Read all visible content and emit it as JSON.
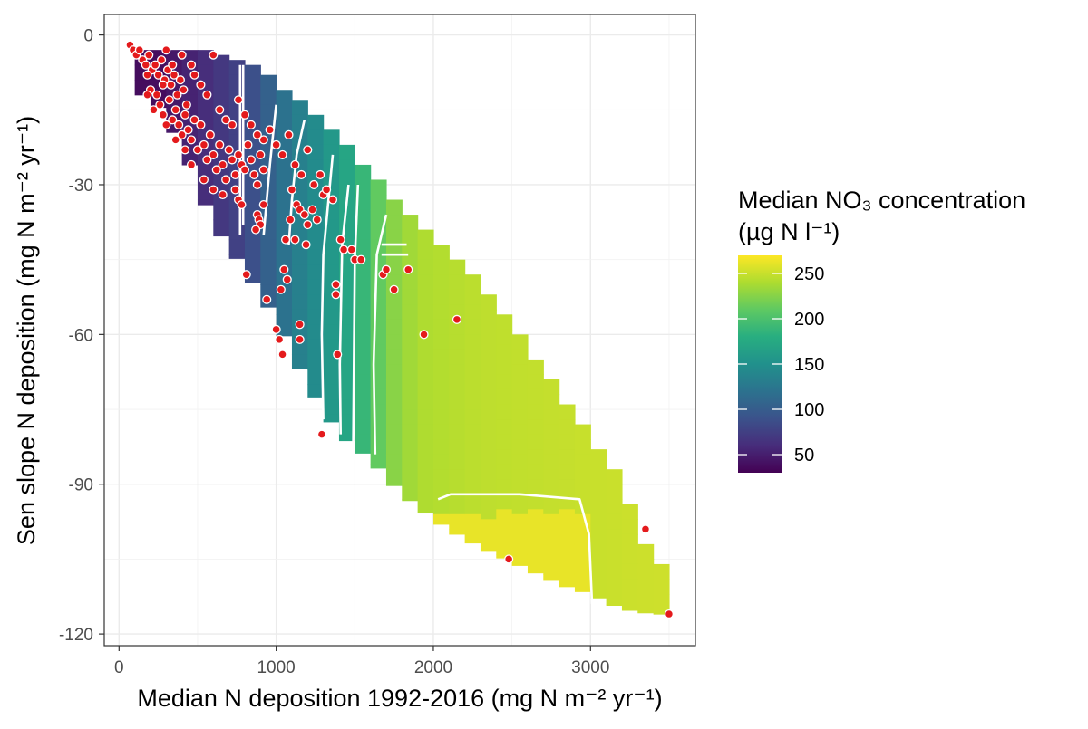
{
  "chart_data": {
    "type": "heatmap",
    "title": "",
    "xlabel": "Median N deposition 1992-2016 (mg N m⁻² yr⁻¹)",
    "ylabel": "Sen slope N deposition (mg N  m⁻² yr⁻¹)",
    "xlim": [
      -100,
      3650
    ],
    "ylim": [
      -122,
      4
    ],
    "x_ticks": [
      0,
      1000,
      2000,
      3000
    ],
    "y_ticks": [
      0,
      -30,
      -60,
      -90,
      -120
    ],
    "grid": true,
    "legend": {
      "title_line1": "Median NO₃ concentration",
      "title_line2": "(µg N l⁻¹)",
      "position": "right",
      "colorscale": "viridis",
      "range": [
        30,
        270
      ],
      "ticks": [
        50,
        100,
        150,
        200,
        250
      ]
    },
    "surface": {
      "description": "interpolated surface of median NO3 concentration",
      "band": [
        {
          "x": 200,
          "ymin": -12,
          "ymax": -3
        },
        {
          "x": 400,
          "ymin": -22,
          "ymax": -3
        },
        {
          "x": 600,
          "ymin": -38,
          "ymax": -3
        },
        {
          "x": 800,
          "ymin": -47,
          "ymax": -5
        },
        {
          "x": 1000,
          "ymin": -57,
          "ymax": -9
        },
        {
          "x": 1200,
          "ymin": -70,
          "ymax": -14
        },
        {
          "x": 1400,
          "ymin": -80,
          "ymax": -20
        },
        {
          "x": 1600,
          "ymin": -85,
          "ymax": -27
        },
        {
          "x": 1800,
          "ymin": -92,
          "ymax": -34
        },
        {
          "x": 2000,
          "ymin": -97,
          "ymax": -40
        },
        {
          "x": 2200,
          "ymin": -101,
          "ymax": -46
        },
        {
          "x": 2400,
          "ymin": -104,
          "ymax": -53
        },
        {
          "x": 2600,
          "ymin": -107,
          "ymax": -62
        },
        {
          "x": 2800,
          "ymin": -110,
          "ymax": -71
        },
        {
          "x": 3000,
          "ymin": -112,
          "ymax": -80
        },
        {
          "x": 3200,
          "ymin": -115,
          "ymax": -89
        },
        {
          "x": 3400,
          "ymin": -116,
          "ymax": -106
        }
      ],
      "value_by_x": [
        {
          "x": 250,
          "value": 38
        },
        {
          "x": 800,
          "value": 80
        },
        {
          "x": 1100,
          "value": 128
        },
        {
          "x": 1300,
          "value": 150
        },
        {
          "x": 1500,
          "value": 178
        },
        {
          "x": 1700,
          "value": 222
        },
        {
          "x": 1900,
          "value": 240
        },
        {
          "x": 2300,
          "value": 246
        },
        {
          "x": 3000,
          "value": 250
        },
        {
          "x": 3450,
          "value": 252
        }
      ],
      "peak": {
        "x": [
          2050,
          2950
        ],
        "y": [
          -95,
          -115
        ],
        "value": 262
      }
    },
    "contours": [
      [
        [
          790,
          -6
        ],
        [
          790,
          -38
        ]
      ],
      [
        [
          770,
          -6
        ],
        [
          770,
          -40
        ]
      ],
      [
        [
          1000,
          -14
        ],
        [
          960,
          -26
        ],
        [
          920,
          -40
        ]
      ],
      [
        [
          1180,
          -17
        ],
        [
          1130,
          -24
        ],
        [
          1100,
          -33
        ],
        [
          1080,
          -42
        ]
      ],
      [
        [
          1360,
          -24
        ],
        [
          1300,
          -44
        ],
        [
          1290,
          -60
        ],
        [
          1300,
          -77
        ]
      ],
      [
        [
          1460,
          -30
        ],
        [
          1420,
          -42
        ],
        [
          1405,
          -66
        ],
        [
          1410,
          -80
        ]
      ],
      [
        [
          1520,
          -30
        ],
        [
          1500,
          -45
        ],
        [
          1490,
          -82
        ]
      ],
      [
        [
          1700,
          -36
        ],
        [
          1640,
          -44
        ],
        [
          1620,
          -66
        ],
        [
          1630,
          -84
        ]
      ],
      [
        [
          1670,
          -42
        ],
        [
          1830,
          -42
        ]
      ],
      [
        [
          1670,
          -44
        ],
        [
          1840,
          -44
        ]
      ],
      [
        [
          2030,
          -93
        ],
        [
          2110,
          -92
        ],
        [
          2550,
          -92
        ],
        [
          2930,
          -93
        ],
        [
          2990,
          -100
        ],
        [
          3010,
          -114
        ]
      ]
    ],
    "points": [
      [
        70,
        -2
      ],
      [
        90,
        -3
      ],
      [
        110,
        -4
      ],
      [
        130,
        -3
      ],
      [
        150,
        -5
      ],
      [
        170,
        -6
      ],
      [
        190,
        -4
      ],
      [
        210,
        -7
      ],
      [
        230,
        -6
      ],
      [
        250,
        -8
      ],
      [
        270,
        -5
      ],
      [
        290,
        -9
      ],
      [
        300,
        -3
      ],
      [
        310,
        -7
      ],
      [
        330,
        -10
      ],
      [
        350,
        -8
      ],
      [
        370,
        -12
      ],
      [
        390,
        -9
      ],
      [
        410,
        -11
      ],
      [
        430,
        -14
      ],
      [
        180,
        -8
      ],
      [
        200,
        -11
      ],
      [
        240,
        -12
      ],
      [
        260,
        -14
      ],
      [
        280,
        -16
      ],
      [
        320,
        -13
      ],
      [
        340,
        -17
      ],
      [
        360,
        -15
      ],
      [
        380,
        -18
      ],
      [
        400,
        -20
      ],
      [
        420,
        -16
      ],
      [
        440,
        -19
      ],
      [
        460,
        -21
      ],
      [
        480,
        -17
      ],
      [
        500,
        -23
      ],
      [
        520,
        -18
      ],
      [
        540,
        -22
      ],
      [
        560,
        -25
      ],
      [
        580,
        -20
      ],
      [
        600,
        -24
      ],
      [
        620,
        -27
      ],
      [
        640,
        -22
      ],
      [
        660,
        -26
      ],
      [
        680,
        -29
      ],
      [
        700,
        -23
      ],
      [
        720,
        -25
      ],
      [
        740,
        -28
      ],
      [
        760,
        -24
      ],
      [
        780,
        -26
      ],
      [
        800,
        -27
      ],
      [
        820,
        -22
      ],
      [
        840,
        -25
      ],
      [
        860,
        -28
      ],
      [
        880,
        -30
      ],
      [
        900,
        -24
      ],
      [
        920,
        -27
      ],
      [
        480,
        -8
      ],
      [
        520,
        -10
      ],
      [
        560,
        -12
      ],
      [
        600,
        -4
      ],
      [
        640,
        -15
      ],
      [
        680,
        -17
      ],
      [
        720,
        -18
      ],
      [
        760,
        -13
      ],
      [
        800,
        -16
      ],
      [
        840,
        -18
      ],
      [
        880,
        -20
      ],
      [
        920,
        -21
      ],
      [
        960,
        -19
      ],
      [
        1000,
        -22
      ],
      [
        1040,
        -24
      ],
      [
        1080,
        -20
      ],
      [
        1120,
        -26
      ],
      [
        1160,
        -28
      ],
      [
        1200,
        -23
      ],
      [
        1240,
        -30
      ],
      [
        1280,
        -28
      ],
      [
        1300,
        -32
      ],
      [
        1320,
        -31
      ],
      [
        1360,
        -33
      ],
      [
        1100,
        -31
      ],
      [
        1130,
        -34
      ],
      [
        1150,
        -35
      ],
      [
        1180,
        -36
      ],
      [
        1200,
        -38
      ],
      [
        1230,
        -35
      ],
      [
        1260,
        -37
      ],
      [
        1090,
        -37
      ],
      [
        1120,
        -41
      ],
      [
        1060,
        -41
      ],
      [
        880,
        -36
      ],
      [
        890,
        -37
      ],
      [
        900,
        -38
      ],
      [
        870,
        -39
      ],
      [
        920,
        -34
      ],
      [
        740,
        -31
      ],
      [
        760,
        -33
      ],
      [
        780,
        -34
      ],
      [
        1190,
        -42
      ],
      [
        1410,
        -41
      ],
      [
        1430,
        -43
      ],
      [
        1480,
        -43
      ],
      [
        1500,
        -45
      ],
      [
        1540,
        -45
      ],
      [
        1680,
        -48
      ],
      [
        1700,
        -47
      ],
      [
        1840,
        -47
      ],
      [
        1750,
        -51
      ],
      [
        1050,
        -47
      ],
      [
        1070,
        -49
      ],
      [
        1030,
        -51
      ],
      [
        940,
        -53
      ],
      [
        810,
        -48
      ],
      [
        1150,
        -58
      ],
      [
        1150,
        -61
      ],
      [
        1000,
        -59
      ],
      [
        1020,
        -61
      ],
      [
        1040,
        -64
      ],
      [
        1380,
        -50
      ],
      [
        1380,
        -52
      ],
      [
        1390,
        -64
      ],
      [
        1290,
        -80
      ],
      [
        1940,
        -60
      ],
      [
        2150,
        -57
      ],
      [
        2480,
        -105
      ],
      [
        3350,
        -99
      ],
      [
        3500,
        -116
      ],
      [
        180,
        -12
      ],
      [
        220,
        -15
      ],
      [
        300,
        -18
      ],
      [
        360,
        -21
      ],
      [
        420,
        -23
      ],
      [
        460,
        -26
      ],
      [
        540,
        -29
      ],
      [
        600,
        -31
      ],
      [
        660,
        -32
      ],
      [
        280,
        -10
      ],
      [
        340,
        -6
      ],
      [
        400,
        -4
      ],
      [
        460,
        -6
      ]
    ]
  }
}
